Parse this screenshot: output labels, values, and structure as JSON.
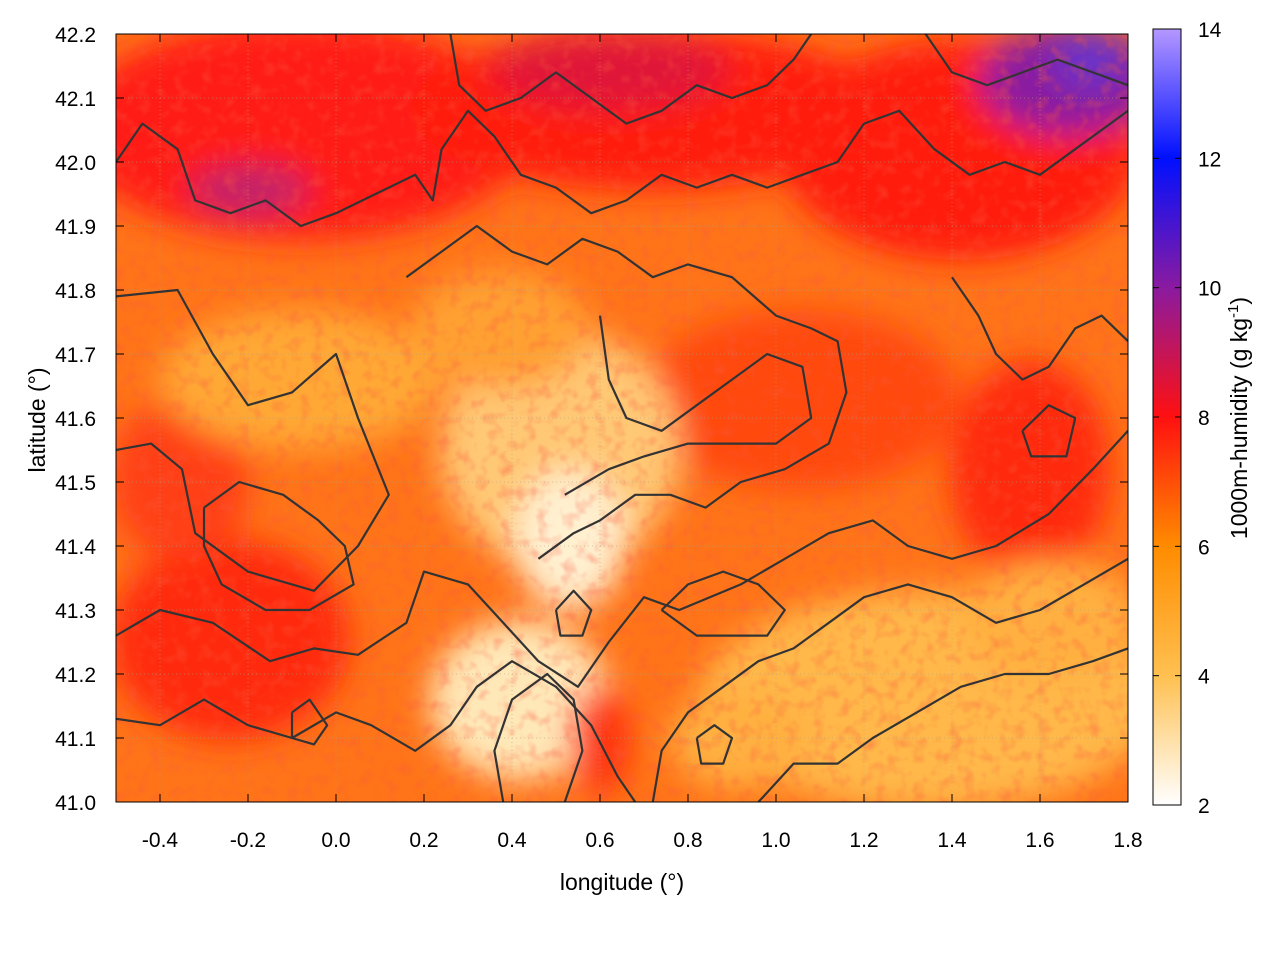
{
  "chart_data": {
    "type": "heatmap",
    "title": "",
    "xlabel": "longitude (°)",
    "ylabel": "latitude (°)",
    "xlim": [
      -0.5,
      1.8
    ],
    "ylim": [
      41.0,
      42.2
    ],
    "x_ticks": [
      "-0.4",
      "-0.2",
      "0.0",
      "0.2",
      "0.4",
      "0.6",
      "0.8",
      "1.0",
      "1.2",
      "1.4",
      "1.6",
      "1.8"
    ],
    "x_tick_values": [
      -0.4,
      -0.2,
      0.0,
      0.2,
      0.4,
      0.6,
      0.8,
      1.0,
      1.2,
      1.4,
      1.6,
      1.8
    ],
    "y_ticks": [
      "41.0",
      "41.1",
      "41.2",
      "41.3",
      "41.4",
      "41.5",
      "41.6",
      "41.7",
      "41.8",
      "41.9",
      "42.0",
      "42.1",
      "42.2"
    ],
    "y_tick_values": [
      41.0,
      41.1,
      41.2,
      41.3,
      41.4,
      41.5,
      41.6,
      41.7,
      41.8,
      41.9,
      42.0,
      42.1,
      42.2
    ],
    "grid": true,
    "colorbar": {
      "label_main": "1000m-humidity (g kg",
      "label_sup": "-1",
      "label_end": ")",
      "range": [
        2,
        14
      ],
      "ticks": [
        "2",
        "4",
        "6",
        "8",
        "10",
        "12",
        "14"
      ],
      "tick_values": [
        2,
        4,
        6,
        8,
        10,
        12,
        14
      ],
      "stops": [
        {
          "value": 2,
          "color": "#ffffff"
        },
        {
          "value": 4,
          "color": "#ffc050"
        },
        {
          "value": 6,
          "color": "#ff8c00"
        },
        {
          "value": 8,
          "color": "#ff1010"
        },
        {
          "value": 10,
          "color": "#8a1aa0"
        },
        {
          "value": 12,
          "color": "#0010ff"
        },
        {
          "value": 14,
          "color": "#b497ff"
        }
      ]
    },
    "contours": {
      "color": "#333333",
      "lines": [
        [
          [
            -0.5,
            41.79
          ],
          [
            -0.36,
            41.8
          ],
          [
            -0.28,
            41.7
          ],
          [
            -0.2,
            41.62
          ],
          [
            -0.1,
            41.64
          ],
          [
            0.0,
            41.7
          ],
          [
            0.05,
            41.6
          ],
          [
            0.12,
            41.48
          ],
          [
            0.05,
            41.4
          ],
          [
            -0.05,
            41.33
          ],
          [
            -0.2,
            41.36
          ],
          [
            -0.32,
            41.42
          ],
          [
            -0.35,
            41.52
          ],
          [
            -0.42,
            41.56
          ],
          [
            -0.5,
            41.55
          ]
        ],
        [
          [
            -0.5,
            41.26
          ],
          [
            -0.4,
            41.3
          ],
          [
            -0.28,
            41.28
          ],
          [
            -0.15,
            41.22
          ],
          [
            -0.05,
            41.24
          ],
          [
            0.05,
            41.23
          ],
          [
            0.16,
            41.28
          ],
          [
            0.2,
            41.36
          ],
          [
            0.3,
            41.34
          ],
          [
            0.38,
            41.28
          ],
          [
            0.46,
            41.22
          ],
          [
            0.55,
            41.18
          ],
          [
            0.62,
            41.25
          ],
          [
            0.7,
            41.32
          ],
          [
            0.78,
            41.3
          ],
          [
            0.92,
            41.34
          ],
          [
            1.02,
            41.38
          ],
          [
            1.12,
            41.42
          ],
          [
            1.22,
            41.44
          ],
          [
            1.3,
            41.4
          ],
          [
            1.4,
            41.38
          ],
          [
            1.5,
            41.4
          ],
          [
            1.62,
            41.45
          ],
          [
            1.72,
            41.52
          ],
          [
            1.8,
            41.58
          ]
        ],
        [
          [
            -0.5,
            41.13
          ],
          [
            -0.4,
            41.12
          ],
          [
            -0.3,
            41.16
          ],
          [
            -0.2,
            41.12
          ],
          [
            -0.1,
            41.1
          ],
          [
            0.0,
            41.14
          ],
          [
            0.08,
            41.12
          ],
          [
            0.18,
            41.08
          ],
          [
            0.26,
            41.12
          ],
          [
            0.32,
            41.18
          ],
          [
            0.4,
            41.22
          ],
          [
            0.5,
            41.18
          ],
          [
            0.58,
            41.12
          ],
          [
            0.64,
            41.04
          ],
          [
            0.68,
            41.0
          ]
        ],
        [
          [
            0.38,
            41.0
          ],
          [
            0.36,
            41.08
          ],
          [
            0.4,
            41.16
          ],
          [
            0.48,
            41.2
          ],
          [
            0.54,
            41.16
          ],
          [
            0.56,
            41.08
          ],
          [
            0.52,
            41.0
          ]
        ],
        [
          [
            0.72,
            41.0
          ],
          [
            0.74,
            41.08
          ],
          [
            0.8,
            41.14
          ],
          [
            0.88,
            41.18
          ],
          [
            0.96,
            41.22
          ],
          [
            1.04,
            41.24
          ],
          [
            1.12,
            41.28
          ],
          [
            1.2,
            41.32
          ],
          [
            1.3,
            41.34
          ],
          [
            1.4,
            41.32
          ],
          [
            1.5,
            41.28
          ],
          [
            1.6,
            41.3
          ],
          [
            1.7,
            41.34
          ],
          [
            1.8,
            41.38
          ]
        ],
        [
          [
            0.96,
            41.0
          ],
          [
            1.04,
            41.06
          ],
          [
            1.14,
            41.06
          ],
          [
            1.22,
            41.1
          ],
          [
            1.32,
            41.14
          ],
          [
            1.42,
            41.18
          ],
          [
            1.52,
            41.2
          ],
          [
            1.62,
            41.2
          ],
          [
            1.72,
            41.22
          ],
          [
            1.8,
            41.24
          ]
        ],
        [
          [
            0.16,
            41.82
          ],
          [
            0.24,
            41.86
          ],
          [
            0.32,
            41.9
          ],
          [
            0.4,
            41.86
          ],
          [
            0.48,
            41.84
          ],
          [
            0.56,
            41.88
          ],
          [
            0.64,
            41.86
          ],
          [
            0.72,
            41.82
          ],
          [
            0.8,
            41.84
          ],
          [
            0.9,
            41.82
          ],
          [
            1.0,
            41.76
          ],
          [
            1.08,
            41.74
          ],
          [
            1.14,
            41.72
          ],
          [
            1.16,
            41.64
          ],
          [
            1.12,
            41.56
          ],
          [
            1.02,
            41.52
          ],
          [
            0.92,
            41.5
          ],
          [
            0.84,
            41.46
          ],
          [
            0.76,
            41.48
          ],
          [
            0.68,
            41.48
          ],
          [
            0.6,
            41.44
          ],
          [
            0.54,
            41.42
          ],
          [
            0.46,
            41.38
          ]
        ],
        [
          [
            0.6,
            41.76
          ],
          [
            0.62,
            41.66
          ],
          [
            0.66,
            41.6
          ],
          [
            0.74,
            41.58
          ],
          [
            0.82,
            41.62
          ],
          [
            0.9,
            41.66
          ],
          [
            0.98,
            41.7
          ],
          [
            1.06,
            41.68
          ],
          [
            1.08,
            41.6
          ],
          [
            1.0,
            41.56
          ],
          [
            0.9,
            41.56
          ],
          [
            0.8,
            41.56
          ],
          [
            0.7,
            41.54
          ],
          [
            0.62,
            41.52
          ],
          [
            0.52,
            41.48
          ]
        ],
        [
          [
            -0.5,
            42.0
          ],
          [
            -0.44,
            42.06
          ],
          [
            -0.36,
            42.02
          ],
          [
            -0.32,
            41.94
          ],
          [
            -0.24,
            41.92
          ],
          [
            -0.16,
            41.94
          ],
          [
            -0.08,
            41.9
          ],
          [
            0.0,
            41.92
          ],
          [
            0.06,
            41.94
          ],
          [
            0.12,
            41.96
          ],
          [
            0.18,
            41.98
          ],
          [
            0.22,
            41.94
          ],
          [
            0.24,
            42.02
          ],
          [
            0.3,
            42.08
          ],
          [
            0.36,
            42.04
          ],
          [
            0.42,
            41.98
          ],
          [
            0.5,
            41.96
          ],
          [
            0.58,
            41.92
          ],
          [
            0.66,
            41.94
          ],
          [
            0.74,
            41.98
          ],
          [
            0.82,
            41.96
          ],
          [
            0.9,
            41.98
          ],
          [
            0.98,
            41.96
          ],
          [
            1.06,
            41.98
          ],
          [
            1.14,
            42.0
          ],
          [
            1.2,
            42.06
          ],
          [
            1.28,
            42.08
          ],
          [
            1.36,
            42.02
          ],
          [
            1.44,
            41.98
          ],
          [
            1.52,
            42.0
          ],
          [
            1.6,
            41.98
          ],
          [
            1.68,
            42.02
          ],
          [
            1.76,
            42.06
          ],
          [
            1.8,
            42.08
          ]
        ],
        [
          [
            0.26,
            42.2
          ],
          [
            0.28,
            42.12
          ],
          [
            0.34,
            42.08
          ],
          [
            0.42,
            42.1
          ],
          [
            0.5,
            42.14
          ],
          [
            0.58,
            42.1
          ],
          [
            0.66,
            42.06
          ],
          [
            0.74,
            42.08
          ],
          [
            0.82,
            42.12
          ],
          [
            0.9,
            42.1
          ],
          [
            0.98,
            42.12
          ],
          [
            1.04,
            42.16
          ],
          [
            1.08,
            42.2
          ]
        ],
        [
          [
            1.34,
            42.2
          ],
          [
            1.4,
            42.14
          ],
          [
            1.48,
            42.12
          ],
          [
            1.56,
            42.14
          ],
          [
            1.64,
            42.16
          ],
          [
            1.72,
            42.14
          ],
          [
            1.8,
            42.12
          ]
        ],
        [
          [
            1.4,
            41.82
          ],
          [
            1.46,
            41.76
          ],
          [
            1.5,
            41.7
          ],
          [
            1.56,
            41.66
          ],
          [
            1.62,
            41.68
          ],
          [
            1.68,
            41.74
          ],
          [
            1.74,
            41.76
          ],
          [
            1.8,
            41.72
          ]
        ],
        [
          [
            -0.3,
            41.46
          ],
          [
            -0.22,
            41.5
          ],
          [
            -0.12,
            41.48
          ],
          [
            -0.04,
            41.44
          ],
          [
            0.02,
            41.4
          ],
          [
            0.04,
            41.34
          ],
          [
            -0.06,
            41.3
          ],
          [
            -0.16,
            41.3
          ],
          [
            -0.26,
            41.34
          ],
          [
            -0.3,
            41.4
          ],
          [
            -0.3,
            41.46
          ]
        ],
        [
          [
            0.74,
            41.3
          ],
          [
            0.8,
            41.34
          ],
          [
            0.88,
            41.36
          ],
          [
            0.96,
            41.34
          ],
          [
            1.02,
            41.3
          ],
          [
            0.98,
            41.26
          ],
          [
            0.9,
            41.26
          ],
          [
            0.82,
            41.26
          ],
          [
            0.74,
            41.3
          ]
        ],
        [
          [
            0.5,
            41.3
          ],
          [
            0.54,
            41.33
          ],
          [
            0.58,
            41.3
          ],
          [
            0.56,
            41.26
          ],
          [
            0.51,
            41.26
          ],
          [
            0.5,
            41.3
          ]
        ],
        [
          [
            -0.1,
            41.14
          ],
          [
            -0.06,
            41.16
          ],
          [
            -0.02,
            41.12
          ],
          [
            -0.05,
            41.09
          ],
          [
            -0.1,
            41.1
          ],
          [
            -0.1,
            41.14
          ]
        ],
        [
          [
            0.82,
            41.1
          ],
          [
            0.86,
            41.12
          ],
          [
            0.9,
            41.1
          ],
          [
            0.88,
            41.06
          ],
          [
            0.83,
            41.06
          ],
          [
            0.82,
            41.1
          ]
        ],
        [
          [
            1.56,
            41.58
          ],
          [
            1.62,
            41.62
          ],
          [
            1.68,
            41.6
          ],
          [
            1.66,
            41.54
          ],
          [
            1.58,
            41.54
          ],
          [
            1.56,
            41.58
          ]
        ]
      ]
    }
  }
}
